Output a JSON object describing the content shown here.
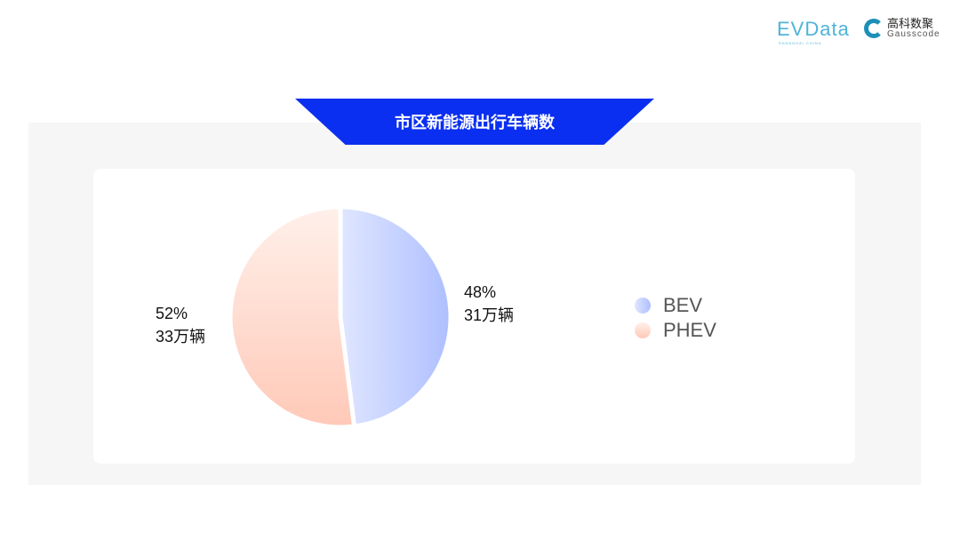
{
  "logos": {
    "evdata": "EVData",
    "evdata_sub": "SHANGHAI CHINA",
    "gauss_cn": "高科数聚",
    "gauss_en": "Gausscode"
  },
  "chart_data": {
    "type": "pie",
    "title": "市区新能源出行车辆数",
    "slices": [
      {
        "name": "BEV",
        "percent": 48,
        "value_label": "31万辆",
        "color": "#aebfff"
      },
      {
        "name": "PHEV",
        "percent": 52,
        "value_label": "33万辆",
        "color": "#ffc9b8"
      }
    ],
    "legend_placement": "right"
  }
}
